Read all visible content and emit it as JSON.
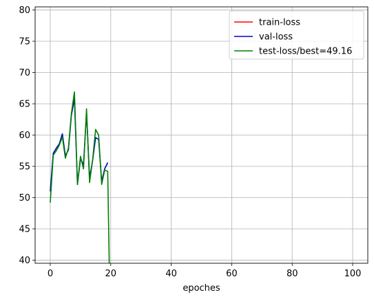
{
  "chart_data": {
    "type": "line",
    "title": "",
    "xlabel": "epoches",
    "ylabel": "",
    "xlim": [
      -5,
      105
    ],
    "ylim": [
      39.5,
      80.5
    ],
    "xticks": [
      0,
      20,
      40,
      60,
      80,
      100
    ],
    "yticks": [
      40,
      45,
      50,
      55,
      60,
      65,
      70,
      75,
      80
    ],
    "grid": true,
    "legend_position": "top-right",
    "series": [
      {
        "name": "train-loss",
        "color": "#ff0000",
        "x": [],
        "y": []
      },
      {
        "name": "val-loss",
        "color": "#0000cc",
        "x": [
          0,
          1,
          2,
          3,
          4,
          5,
          6,
          7,
          8,
          9,
          10,
          11,
          12,
          13,
          14,
          15,
          16,
          17,
          18,
          19
        ],
        "y": [
          51.0,
          57.1,
          57.9,
          58.6,
          60.2,
          56.7,
          57.6,
          63.2,
          65.8,
          52.1,
          56.2,
          55.3,
          63.6,
          53.1,
          55.9,
          59.6,
          59.3,
          52.6,
          54.6,
          55.6
        ]
      },
      {
        "name": "test-loss/best=49.16",
        "color": "#008000",
        "x": [
          0,
          1,
          2,
          3,
          4,
          5,
          6,
          7,
          8,
          9,
          10,
          11,
          12,
          13,
          14,
          15,
          16,
          17,
          18,
          19,
          19.5
        ],
        "y": [
          49.2,
          56.8,
          57.5,
          58.4,
          59.7,
          56.3,
          57.9,
          63.5,
          66.9,
          52.1,
          56.6,
          54.6,
          64.2,
          52.4,
          56.0,
          60.9,
          60.0,
          52.1,
          54.4,
          54.2,
          39.5
        ]
      }
    ]
  }
}
